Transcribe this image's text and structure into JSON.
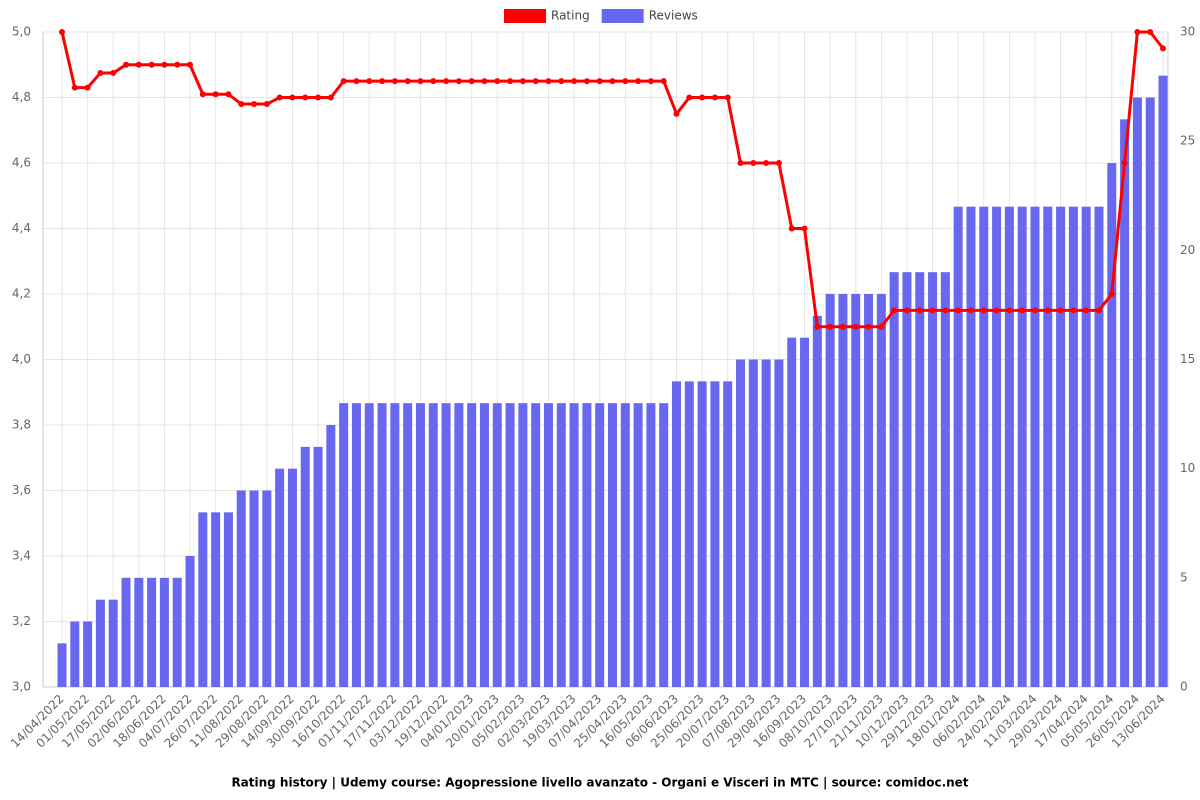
{
  "chart_data": {
    "type": "bar+line",
    "title": "Rating history | Udemy course: Agopressione livello avanzato - Organi e Visceri in MTC | source: comidoc.net",
    "categories": [
      "14/04/2022",
      null,
      "01/05/2022",
      null,
      "17/05/2022",
      null,
      "02/06/2022",
      null,
      "18/06/2022",
      null,
      "04/07/2022",
      null,
      "26/07/2022",
      null,
      "11/08/2022",
      null,
      "29/08/2022",
      null,
      "14/09/2022",
      null,
      "30/09/2022",
      null,
      "16/10/2022",
      null,
      "01/11/2022",
      null,
      "17/11/2022",
      null,
      "03/12/2022",
      null,
      "19/12/2022",
      null,
      "04/01/2023",
      null,
      "20/01/2023",
      null,
      "05/02/2023",
      null,
      "02/03/2023",
      null,
      "19/03/2023",
      null,
      "07/04/2023",
      null,
      "25/04/2023",
      null,
      "16/05/2023",
      null,
      "06/06/2023",
      null,
      "25/06/2023",
      null,
      "20/07/2023",
      null,
      "07/08/2023",
      null,
      "29/08/2023",
      null,
      "16/09/2023",
      null,
      "08/10/2023",
      null,
      "27/10/2023",
      null,
      "21/11/2023",
      null,
      "10/12/2023",
      null,
      "29/12/2023",
      null,
      "18/01/2024",
      null,
      "06/02/2024",
      null,
      "24/02/2024",
      null,
      "11/03/2024",
      null,
      "29/03/2024",
      null,
      "17/04/2024",
      null,
      "05/05/2024",
      null,
      "26/05/2024",
      null,
      "13/06/2024"
    ],
    "series": [
      {
        "name": "Rating",
        "color": "#ff0000",
        "kind": "line",
        "axis": "y",
        "values": [
          5.0,
          4.83,
          4.83,
          4.875,
          4.875,
          4.9,
          4.9,
          4.9,
          4.9,
          4.9,
          4.9,
          4.81,
          4.81,
          4.81,
          4.78,
          4.78,
          4.78,
          4.8,
          4.8,
          4.8,
          4.8,
          4.8,
          4.85,
          4.85,
          4.85,
          4.85,
          4.85,
          4.85,
          4.85,
          4.85,
          4.85,
          4.85,
          4.85,
          4.85,
          4.85,
          4.85,
          4.85,
          4.85,
          4.85,
          4.85,
          4.85,
          4.85,
          4.85,
          4.85,
          4.85,
          4.85,
          4.85,
          4.85,
          4.75,
          4.8,
          4.8,
          4.8,
          4.8,
          4.6,
          4.6,
          4.6,
          4.6,
          4.4,
          4.4,
          4.1,
          4.1,
          4.1,
          4.1,
          4.1,
          4.1,
          4.15,
          4.15,
          4.15,
          4.15,
          4.15,
          4.15,
          4.15,
          4.15,
          4.15,
          4.15,
          4.15,
          4.15,
          4.15,
          4.15,
          4.15,
          4.15,
          4.15,
          4.2,
          4.6,
          5.0,
          5.0,
          4.95
        ]
      },
      {
        "name": "Reviews",
        "color": "#6868ee",
        "kind": "bar",
        "axis": "y2",
        "values": [
          2,
          3,
          3,
          4,
          4,
          5,
          5,
          5,
          5,
          5,
          6,
          8,
          8,
          8,
          9,
          9,
          9,
          10,
          10,
          11,
          11,
          12,
          13,
          13,
          13,
          13,
          13,
          13,
          13,
          13,
          13,
          13,
          13,
          13,
          13,
          13,
          13,
          13,
          13,
          13,
          13,
          13,
          13,
          13,
          13,
          13,
          13,
          13,
          14,
          14,
          14,
          14,
          14,
          15,
          15,
          15,
          15,
          16,
          16,
          17,
          18,
          18,
          18,
          18,
          18,
          19,
          19,
          19,
          19,
          19,
          22,
          22,
          22,
          22,
          22,
          22,
          22,
          22,
          22,
          22,
          22,
          22,
          24,
          26,
          27,
          27,
          28
        ]
      }
    ],
    "ylim": [
      3.0,
      5.0
    ],
    "yticks": [
      {
        "value": 3.0,
        "label": "3,0"
      },
      {
        "value": 3.2,
        "label": "3,2"
      },
      {
        "value": 3.4,
        "label": "3,4"
      },
      {
        "value": 3.6,
        "label": "3,6"
      },
      {
        "value": 3.8,
        "label": "3,8"
      },
      {
        "value": 4.0,
        "label": "4,0"
      },
      {
        "value": 4.2,
        "label": "4,2"
      },
      {
        "value": 4.4,
        "label": "4,4"
      },
      {
        "value": 4.6,
        "label": "4,6"
      },
      {
        "value": 4.8,
        "label": "4,8"
      },
      {
        "value": 5.0,
        "label": "5,0"
      }
    ],
    "y2lim": [
      0,
      30
    ],
    "y2ticks": [
      0,
      5,
      10,
      15,
      20,
      25,
      30
    ],
    "grid": true,
    "legend": "top"
  }
}
